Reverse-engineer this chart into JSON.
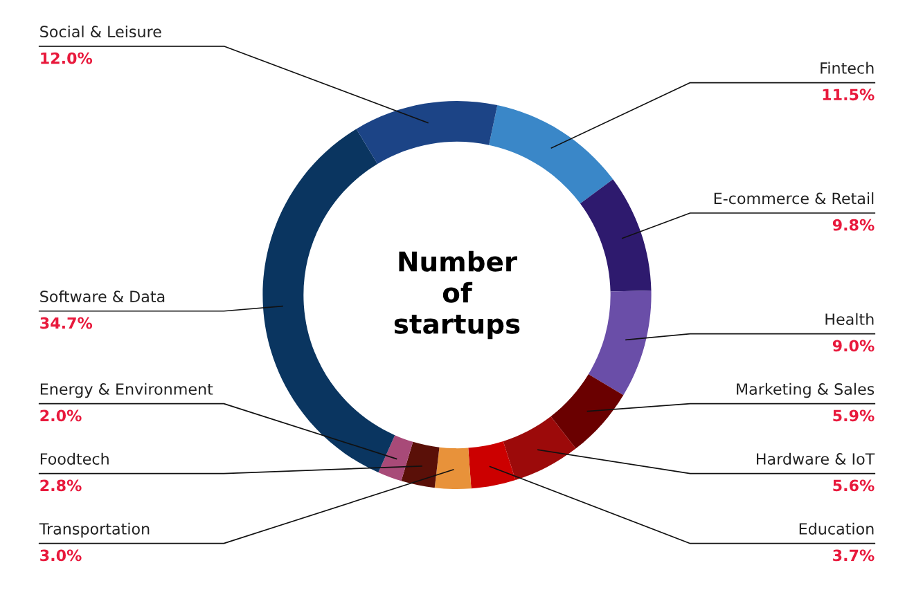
{
  "chart_data": {
    "type": "donut",
    "title": "Number\nof\nstartups",
    "categories": [
      "Fintech",
      "E-commerce & Retail",
      "Health",
      "Marketing & Sales",
      "Hardware & IoT",
      "Education",
      "Transportation",
      "Foodtech",
      "Energy & Environment",
      "Software & Data",
      "Social & Leisure"
    ],
    "values": [
      11.5,
      9.8,
      9.0,
      5.9,
      5.6,
      3.7,
      3.0,
      2.8,
      2.0,
      34.7,
      12.0
    ],
    "value_labels": [
      "11.5%",
      "9.8%",
      "9.0%",
      "5.9%",
      "5.6%",
      "3.7%",
      "3.0%",
      "2.8%",
      "2.0%",
      "34.7%",
      "12.0%"
    ],
    "colors": [
      "#3a87c8",
      "#2e1a6e",
      "#6a4ea8",
      "#6a0000",
      "#9c0a0a",
      "#cc0000",
      "#e8923a",
      "#5a1008",
      "#a84a78",
      "#0a3560",
      "#1c4486"
    ]
  }
}
